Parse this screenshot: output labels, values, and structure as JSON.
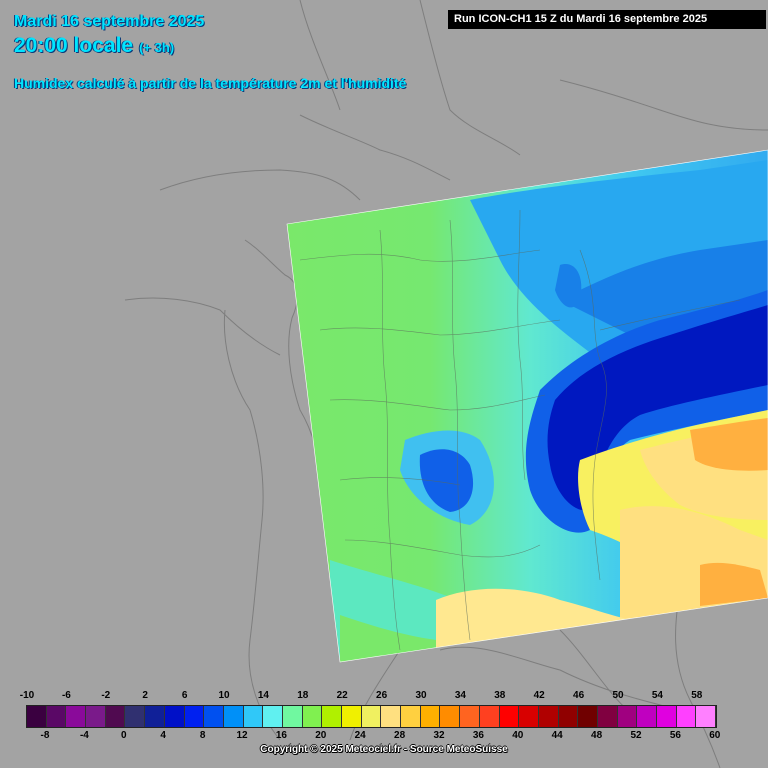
{
  "header": {
    "date": "Mardi 16 septembre 2025",
    "time": "20:00 locale",
    "offset": "(+ 3h)",
    "description": "Humidex calculé à partir de la température 2m et l'humidité",
    "run": "Run ICON-CH1 15 Z du Mardi 16 septembre 2025"
  },
  "legend": {
    "upper_ticks": [
      "-10",
      "-6",
      "-2",
      "2",
      "6",
      "10",
      "14",
      "18",
      "22",
      "26",
      "30",
      "34",
      "38",
      "42",
      "46",
      "50",
      "54",
      "58"
    ],
    "lower_ticks": [
      "-8",
      "-4",
      "0",
      "4",
      "8",
      "12",
      "16",
      "20",
      "24",
      "28",
      "32",
      "36",
      "40",
      "44",
      "48",
      "52",
      "56",
      "60"
    ],
    "colors": [
      "#3a0040",
      "#5a0866",
      "#8a0a9a",
      "#7a1a8a",
      "#500a50",
      "#303070",
      "#102098",
      "#0010c8",
      "#0020f0",
      "#0050f0",
      "#0090f8",
      "#30c8f8",
      "#60f0f0",
      "#70f8a0",
      "#80f050",
      "#b0f000",
      "#f0f000",
      "#f0f060",
      "#ffe080",
      "#ffd040",
      "#ffb000",
      "#ff8c00",
      "#ff6420",
      "#ff4020",
      "#ff0000",
      "#d80000",
      "#b00000",
      "#900000",
      "#700000",
      "#800040",
      "#a00080",
      "#c000c0",
      "#e000e0",
      "#ff40ff",
      "#ff80ff"
    ]
  },
  "map": {
    "colors": {
      "background": "#a3a3a3",
      "humidex_green": "#7ae86a",
      "humidex_cyan": "#5ce8e8",
      "humidex_lightblue": "#40c8f0",
      "humidex_blue": "#1060e8",
      "humidex_darkblue": "#0010b0",
      "humidex_yellow": "#f8f060",
      "humidex_orange": "#ffb040",
      "humidex_palegold": "#ffe890"
    }
  },
  "footer": {
    "copyright": "Copyright © 2025 Meteociel.fr - Source MeteoSuisse"
  }
}
